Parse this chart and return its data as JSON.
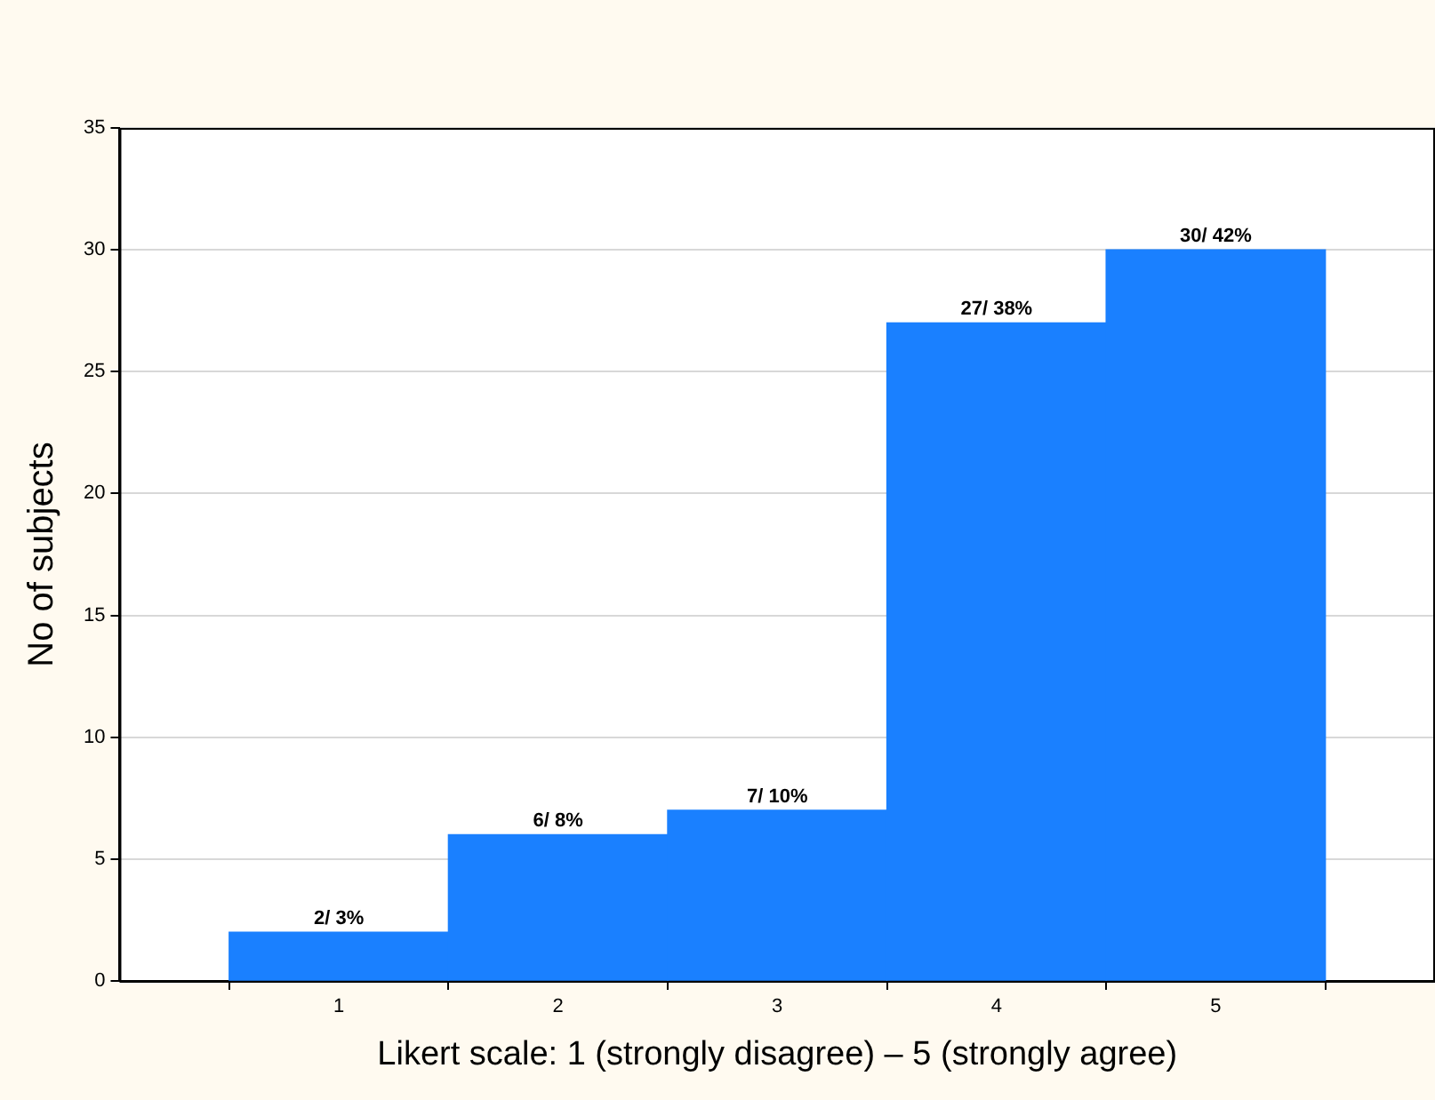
{
  "chart_data": {
    "type": "bar",
    "xlabel": "Likert scale: 1 (strongly disagree) – 5 (strongly agree)",
    "ylabel": "No of subjects",
    "categories": [
      "1",
      "2",
      "3",
      "4",
      "5"
    ],
    "values": [
      2,
      6,
      7,
      27,
      30
    ],
    "value_labels": [
      "2/ 3%",
      "6/ 8%",
      "7/ 10%",
      "27/ 38%",
      "30/ 42%"
    ],
    "color": "#1a80ff",
    "ylim": [
      0,
      35
    ],
    "yticks": [
      0,
      5,
      10,
      15,
      20,
      25,
      30,
      35
    ],
    "grid": "y",
    "legend": false
  }
}
